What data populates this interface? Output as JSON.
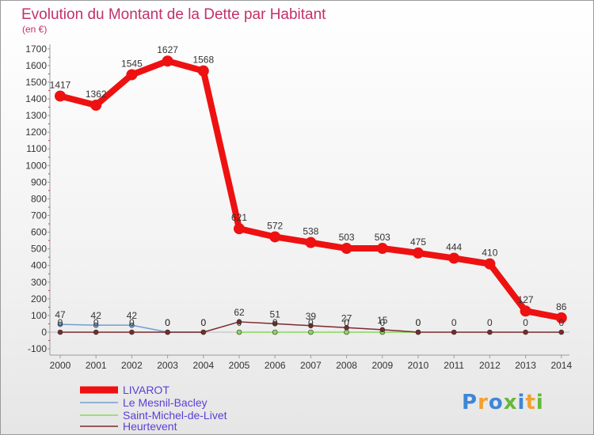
{
  "chart_data": {
    "type": "line",
    "title": "Evolution du Montant de la Dette par Habitant",
    "subtitle": "(en €)",
    "xlabel": "",
    "ylabel": "",
    "ylim": [
      -100,
      1700
    ],
    "yticks": [
      -100,
      0,
      100,
      200,
      300,
      400,
      500,
      600,
      700,
      800,
      900,
      1000,
      1100,
      1200,
      1300,
      1400,
      1500,
      1600,
      1700
    ],
    "grid": false,
    "legend_position": "bottom-left",
    "categories": [
      "2000",
      "2001",
      "2002",
      "2003",
      "2004",
      "2005",
      "2006",
      "2007",
      "2008",
      "2009",
      "2010",
      "2011",
      "2012",
      "2013",
      "2014"
    ],
    "series": [
      {
        "name": "LIVAROT",
        "color": "#ee1111",
        "values": [
          1417,
          1362,
          1545,
          1627,
          1568,
          621,
          572,
          538,
          503,
          503,
          475,
          444,
          410,
          127,
          86
        ],
        "labels": [
          "1417",
          "1362",
          "1545",
          "1627",
          "1568",
          "621",
          "572",
          "538",
          "503",
          "503",
          "475",
          "444",
          "410",
          "127",
          "86"
        ]
      },
      {
        "name": "Le Mesnil-Bacley",
        "color": "#6f9fd0",
        "values": [
          47,
          42,
          42,
          0,
          0,
          null,
          null,
          null,
          null,
          null,
          null,
          null,
          null,
          null,
          null
        ],
        "labels": [
          "47",
          "42",
          "42",
          "0",
          "0",
          "",
          "",
          "",
          "",
          "",
          "",
          "",
          "",
          "",
          ""
        ]
      },
      {
        "name": "Saint-Michel-de-Livet",
        "color": "#88d85a",
        "values": [
          null,
          null,
          null,
          null,
          null,
          0,
          0,
          0,
          0,
          0,
          0,
          null,
          null,
          null,
          null
        ],
        "labels": [
          "",
          "",
          "",
          "",
          "",
          "0",
          "0",
          "0",
          "0",
          "0",
          "0",
          "",
          "",
          "",
          ""
        ]
      },
      {
        "name": "Heurtevent",
        "color": "#7a2a2a",
        "values": [
          0,
          0,
          0,
          0,
          0,
          62,
          51,
          39,
          27,
          15,
          0,
          0,
          0,
          0,
          0
        ],
        "labels": [
          "0",
          "0",
          "0",
          "0",
          "0",
          "62",
          "51",
          "39",
          "27",
          "15",
          "0",
          "0",
          "0",
          "0",
          "0"
        ]
      }
    ]
  },
  "branding": {
    "logo_letters": [
      "P",
      "r",
      "o",
      "x",
      "i",
      "t",
      "i"
    ],
    "logo_colors": [
      "#3f86d6",
      "#f2a12d",
      "#3f86d6",
      "#66b83a",
      "#3f86d6",
      "#f2a12d",
      "#66b83a"
    ]
  }
}
